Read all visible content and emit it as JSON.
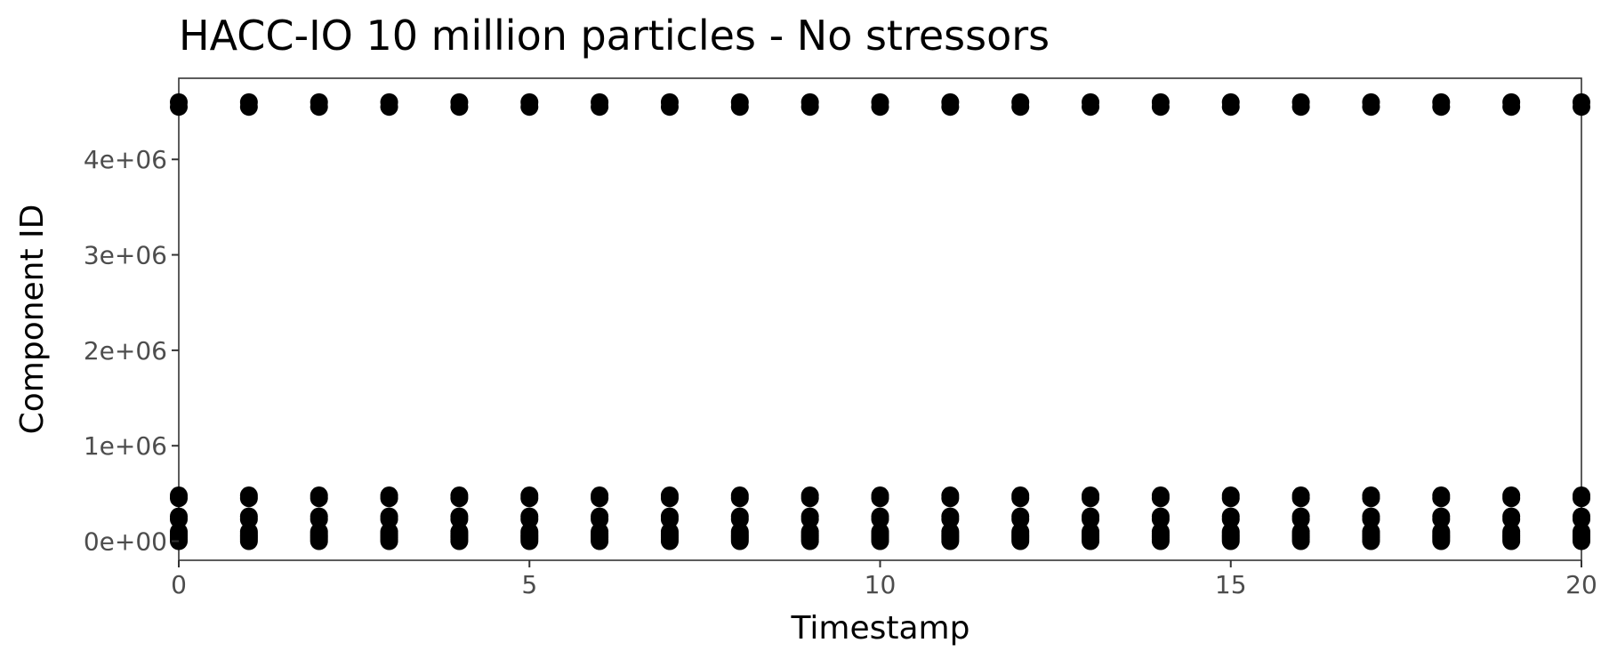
{
  "chart_data": {
    "type": "scatter",
    "title": "HACC-IO 10 million particles - No stressors",
    "xlabel": "Timestamp",
    "ylabel": "Component ID",
    "xlim": [
      0,
      20
    ],
    "ylim": [
      -200000,
      4850000
    ],
    "x_ticks": [
      0,
      5,
      10,
      15,
      20
    ],
    "x_tick_labels": [
      "0",
      "5",
      "10",
      "15",
      "20"
    ],
    "y_ticks": [
      0,
      1000000,
      2000000,
      3000000,
      4000000
    ],
    "y_tick_labels": [
      "0e+00",
      "1e+06",
      "2e+06",
      "3e+06",
      "4e+06"
    ],
    "grid": false,
    "legend": "none",
    "point_color": "#000000",
    "timestamps": [
      0,
      1,
      2,
      3,
      4,
      5,
      6,
      7,
      8,
      9,
      10,
      11,
      12,
      13,
      14,
      15,
      16,
      17,
      18,
      19,
      20
    ],
    "component_ids": [
      0,
      20000,
      40000,
      60000,
      80000,
      100000,
      230000,
      260000,
      450000,
      480000,
      4550000,
      4600000
    ]
  }
}
